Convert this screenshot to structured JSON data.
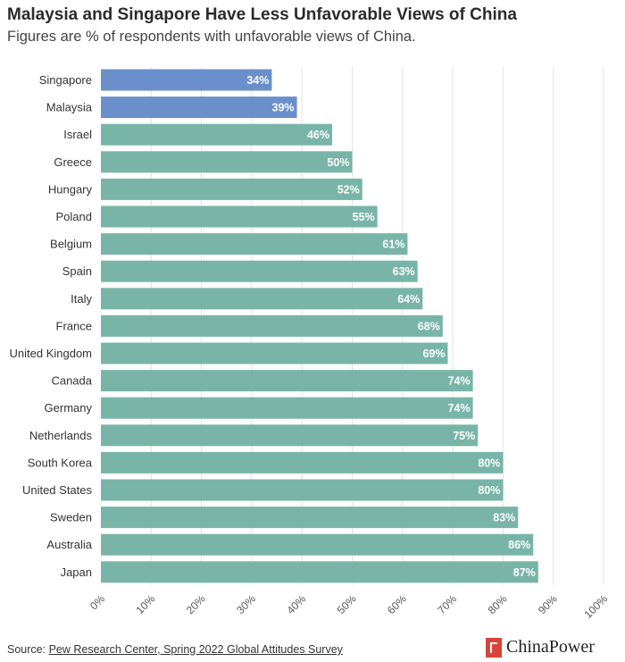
{
  "header": {
    "title": "Malaysia and Singapore Have Less Unfavorable Views of China",
    "subtitle": "Figures are % of respondents with unfavorable views of China."
  },
  "footer": {
    "source_prefix": "Source: ",
    "source_link": "Pew Research Center, Spring 2022 Global Attitudes Survey",
    "brand": "ChinaPower"
  },
  "colors": {
    "highlight": "#6a8fcb",
    "default": "#78b5a8",
    "grid": "#e3e3e3",
    "brand": "#d9443a"
  },
  "chart_data": {
    "type": "bar",
    "orientation": "horizontal",
    "title": "Malaysia and Singapore Have Less Unfavorable Views of China",
    "subtitle": "Figures are % of respondents with unfavorable views of China.",
    "xlim": [
      0,
      100
    ],
    "grid": true,
    "x_ticks": [
      "0%",
      "10%",
      "20%",
      "30%",
      "40%",
      "50%",
      "60%",
      "70%",
      "80%",
      "90%",
      "100%"
    ],
    "categories": [
      "Singapore",
      "Malaysia",
      "Israel",
      "Greece",
      "Hungary",
      "Poland",
      "Belgium",
      "Spain",
      "Italy",
      "France",
      "United Kingdom",
      "Canada",
      "Germany",
      "Netherlands",
      "South Korea",
      "United States",
      "Sweden",
      "Australia",
      "Japan"
    ],
    "values": [
      34,
      39,
      46,
      50,
      52,
      55,
      61,
      63,
      64,
      68,
      69,
      74,
      74,
      75,
      80,
      80,
      83,
      86,
      87
    ],
    "labels": [
      "34%",
      "39%",
      "46%",
      "50%",
      "52%",
      "55%",
      "61%",
      "63%",
      "64%",
      "68%",
      "69%",
      "74%",
      "74%",
      "75%",
      "80%",
      "80%",
      "83%",
      "86%",
      "87%"
    ],
    "highlighted": [
      "Singapore",
      "Malaysia"
    ]
  }
}
